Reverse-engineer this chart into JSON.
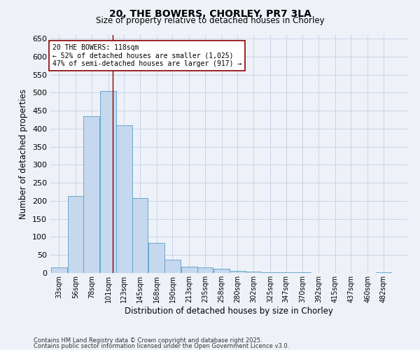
{
  "title": "20, THE BOWERS, CHORLEY, PR7 3LA",
  "subtitle": "Size of property relative to detached houses in Chorley",
  "xlabel": "Distribution of detached houses by size in Chorley",
  "ylabel": "Number of detached properties",
  "footnote1": "Contains HM Land Registry data © Crown copyright and database right 2025.",
  "footnote2": "Contains public sector information licensed under the Open Government Licence v3.0.",
  "annotation_title": "20 THE BOWERS: 118sqm",
  "annotation_line1": "← 52% of detached houses are smaller (1,025)",
  "annotation_line2": "47% of semi-detached houses are larger (917) →",
  "property_size_sqm": 118,
  "bar_color": "#c5d8ed",
  "bar_edge_color": "#5a9ec9",
  "vline_color": "#8b0000",
  "grid_color": "#c8d4e8",
  "background_color": "#eef2f8",
  "categories": [
    "33sqm",
    "56sqm",
    "78sqm",
    "101sqm",
    "123sqm",
    "145sqm",
    "168sqm",
    "190sqm",
    "213sqm",
    "235sqm",
    "258sqm",
    "280sqm",
    "302sqm",
    "325sqm",
    "347sqm",
    "370sqm",
    "392sqm",
    "415sqm",
    "437sqm",
    "460sqm",
    "482sqm"
  ],
  "bin_edges": [
    33,
    56,
    78,
    101,
    123,
    145,
    168,
    190,
    213,
    235,
    258,
    280,
    302,
    325,
    347,
    370,
    392,
    415,
    437,
    460,
    482
  ],
  "bin_width": 22,
  "values": [
    15,
    213,
    435,
    505,
    410,
    207,
    84,
    37,
    17,
    15,
    12,
    5,
    4,
    2,
    1,
    1,
    0,
    0,
    0,
    0,
    2
  ],
  "ylim": [
    0,
    660
  ],
  "yticks": [
    0,
    50,
    100,
    150,
    200,
    250,
    300,
    350,
    400,
    450,
    500,
    550,
    600,
    650
  ],
  "annotation_box_color": "white",
  "annotation_box_edge": "#8b0000",
  "figsize": [
    6.0,
    5.0
  ],
  "dpi": 100
}
